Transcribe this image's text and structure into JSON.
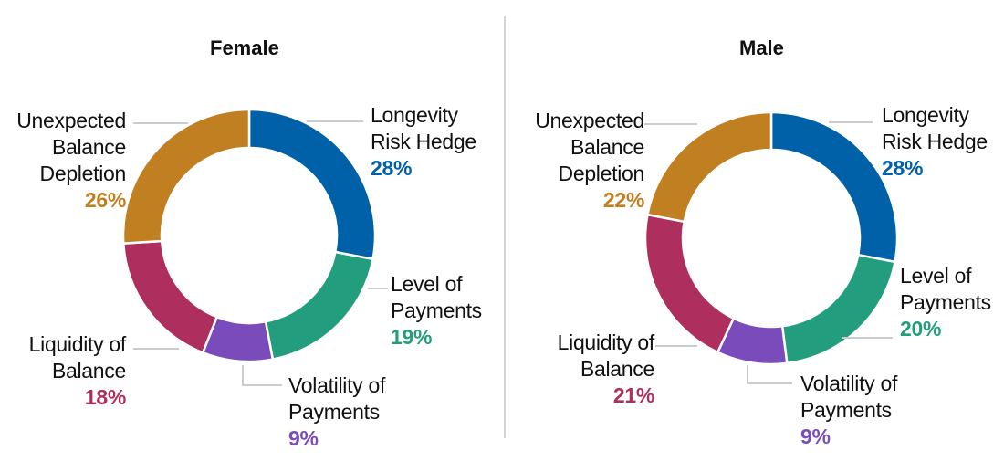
{
  "chart_data": [
    {
      "type": "pie",
      "subtype": "donut",
      "title": "Female",
      "categories": [
        "Longevity Risk Hedge",
        "Level of Payments",
        "Volatility of Payments",
        "Liquidity of Balance",
        "Unexpected Balance Depletion"
      ],
      "values": [
        28,
        19,
        9,
        18,
        26
      ],
      "unit": "%",
      "colors": [
        "#0061a8",
        "#229e7e",
        "#7a4bbb",
        "#ae2f5e",
        "#c07f20"
      ]
    },
    {
      "type": "pie",
      "subtype": "donut",
      "title": "Male",
      "categories": [
        "Longevity Risk Hedge",
        "Level of Payments",
        "Volatility of Payments",
        "Liquidity of Balance",
        "Unexpected Balance Depletion"
      ],
      "values": [
        28,
        20,
        9,
        21,
        22
      ],
      "unit": "%",
      "colors": [
        "#0061a8",
        "#229e7e",
        "#7a4bbb",
        "#ae2f5e",
        "#c07f20"
      ]
    }
  ],
  "female": {
    "title": "Female",
    "labels": {
      "longevity": {
        "line1": "Longevity",
        "line2": "Risk Hedge",
        "pct": "28%"
      },
      "level": {
        "line1": "Level of",
        "line2": "Payments",
        "pct": "19%"
      },
      "volatility": {
        "line1": "Volatility of",
        "line2": "Payments",
        "pct": "9%"
      },
      "liquidity": {
        "line1": "Liquidity of",
        "line2": "Balance",
        "pct": "18%"
      },
      "unexpected": {
        "line1": "Unexpected",
        "line2": "Balance",
        "line3": "Depletion",
        "pct": "26%"
      }
    }
  },
  "male": {
    "title": "Male",
    "labels": {
      "longevity": {
        "line1": "Longevity",
        "line2": "Risk Hedge",
        "pct": "28%"
      },
      "level": {
        "line1": "Level of",
        "line2": "Payments",
        "pct": "20%"
      },
      "volatility": {
        "line1": "Volatility of",
        "line2": "Payments",
        "pct": "9%"
      },
      "liquidity": {
        "line1": "Liquidity of",
        "line2": "Balance",
        "pct": "21%"
      },
      "unexpected": {
        "line1": "Unexpected",
        "line2": "Balance",
        "line3": "Depletion",
        "pct": "22%"
      }
    }
  }
}
